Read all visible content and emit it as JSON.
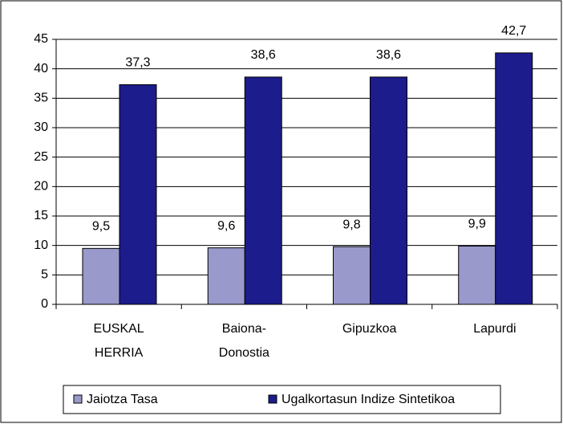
{
  "chart_data": {
    "type": "bar",
    "categories": [
      "EUSKAL\nHERRIA",
      "Baiona-\nDonostia",
      "Gipuzkoa",
      "Lapurdi"
    ],
    "series": [
      {
        "name": "Jaiotza Tasa",
        "color": "#9999cc",
        "values": [
          9.5,
          9.6,
          9.8,
          9.9
        ],
        "value_labels": [
          "9,5",
          "9,6",
          "9,8",
          "9,9"
        ]
      },
      {
        "name": "Ugalkortasun Indize Sintetikoa",
        "color": "#1c1c8c",
        "values": [
          37.3,
          38.6,
          38.6,
          42.7
        ],
        "value_labels": [
          "37,3",
          "38,6",
          "38,6",
          "42,7"
        ]
      }
    ],
    "ylim": [
      0,
      45
    ],
    "yticks": [
      0,
      5,
      10,
      15,
      20,
      25,
      30,
      35,
      40,
      45
    ],
    "grid": true,
    "legend": "bottom"
  }
}
